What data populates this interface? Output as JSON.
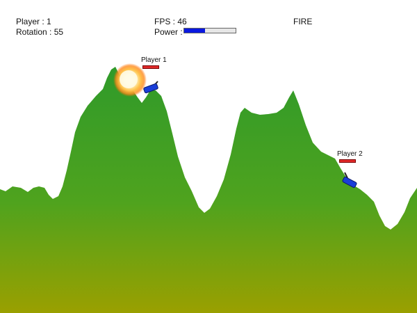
{
  "hud": {
    "player_label": "Player : 1",
    "rotation_label": "Rotation : 55",
    "fps_label": "FPS : 46",
    "power_label": "Power :",
    "power_fraction": 0.4,
    "fire_label": "FIRE"
  },
  "players": [
    {
      "name": "Player 1",
      "health_fraction": 1.0,
      "tank_color": "#1a3ed8"
    },
    {
      "name": "Player 2",
      "health_fraction": 1.0,
      "tank_color": "#1a3ed8"
    }
  ],
  "colors": {
    "terrain_top": "#2f9a2a",
    "terrain_bottom": "#9aa000",
    "explosion_core": "#fffbe0",
    "explosion_glow": "#ff8a1e"
  },
  "icons": {
    "tank": "tank-icon",
    "explosion": "explosion-icon"
  }
}
